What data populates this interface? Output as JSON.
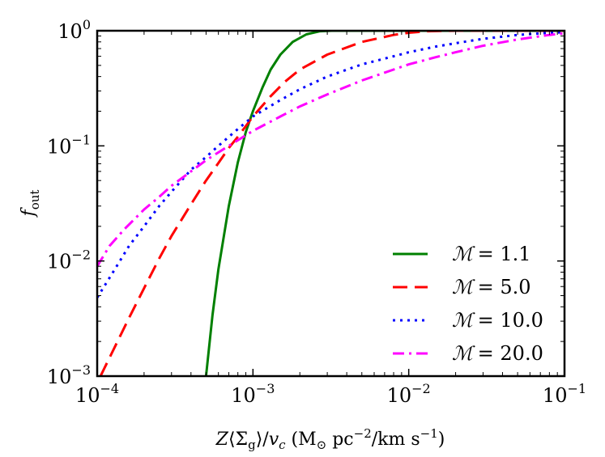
{
  "chart_data": {
    "type": "line",
    "title": "",
    "xlabel": "Z⟨Σg⟩/vc (M⊙ pc^-2/km s^-1)",
    "ylabel": "f_out",
    "xscale": "log",
    "yscale": "log",
    "xlim": [
      0.0001,
      0.1
    ],
    "ylim": [
      0.001,
      1
    ],
    "x_ticks": [
      {
        "value": 0.0001,
        "base": "10",
        "exp": "−4"
      },
      {
        "value": 0.001,
        "base": "10",
        "exp": "−3"
      },
      {
        "value": 0.01,
        "base": "10",
        "exp": "−2"
      },
      {
        "value": 0.1,
        "base": "10",
        "exp": "−1"
      }
    ],
    "y_ticks": [
      {
        "value": 0.001,
        "base": "10",
        "exp": "−3"
      },
      {
        "value": 0.01,
        "base": "10",
        "exp": "−2"
      },
      {
        "value": 0.1,
        "base": "10",
        "exp": "−1"
      },
      {
        "value": 1,
        "base": "10",
        "exp": "0"
      }
    ],
    "legend_position": "lower-right",
    "series": [
      {
        "name": "ℳ = 1.1",
        "label_sym": "ℳ",
        "label_val": "= 1.1",
        "color": "#008000",
        "dash": "solid",
        "x": [
          0.0005,
          0.00055,
          0.0006,
          0.0007,
          0.0008,
          0.0009,
          0.001,
          0.00115,
          0.0013,
          0.0015,
          0.0018,
          0.0022,
          0.0027,
          0.0032,
          0.01,
          0.1
        ],
        "y": [
          0.001,
          0.0034,
          0.0085,
          0.03,
          0.072,
          0.132,
          0.2,
          0.32,
          0.46,
          0.62,
          0.8,
          0.93,
          0.99,
          1.0,
          1.0,
          1.0
        ]
      },
      {
        "name": "ℳ = 5.0",
        "label_sym": "ℳ",
        "label_val": "= 5.0",
        "color": "#ff0000",
        "dash": "dashed",
        "x": [
          0.000105,
          0.00013,
          0.00016,
          0.0002,
          0.00025,
          0.0003,
          0.0004,
          0.0005,
          0.0006,
          0.0007,
          0.0008,
          0.001,
          0.0013,
          0.0016,
          0.002,
          0.003,
          0.005,
          0.008,
          0.01,
          0.013,
          0.02,
          0.05,
          0.1
        ],
        "y": [
          0.001,
          0.0018,
          0.0032,
          0.0058,
          0.0105,
          0.0165,
          0.031,
          0.05,
          0.071,
          0.096,
          0.12,
          0.18,
          0.27,
          0.36,
          0.46,
          0.62,
          0.8,
          0.92,
          0.96,
          0.99,
          1.0,
          1.0,
          1.0
        ]
      },
      {
        "name": "ℳ = 10.0",
        "label_sym": "ℳ",
        "label_val": "= 10.0",
        "color": "#0000ff",
        "dash": "dotted",
        "x": [
          0.0001,
          0.00013,
          0.00016,
          0.0002,
          0.00025,
          0.0003,
          0.0004,
          0.0005,
          0.0006,
          0.0008,
          0.001,
          0.0015,
          0.002,
          0.003,
          0.005,
          0.008,
          0.01,
          0.015,
          0.02,
          0.03,
          0.05,
          0.08,
          0.1
        ],
        "y": [
          0.0048,
          0.0085,
          0.0135,
          0.02,
          0.03,
          0.04,
          0.062,
          0.08,
          0.1,
          0.14,
          0.18,
          0.25,
          0.31,
          0.4,
          0.51,
          0.6,
          0.65,
          0.73,
          0.78,
          0.85,
          0.92,
          0.96,
          0.97
        ]
      },
      {
        "name": "ℳ = 20.0",
        "label_sym": "ℳ",
        "label_val": "= 20.0",
        "color": "#ff00ff",
        "dash": "dashdot",
        "x": [
          0.0001,
          0.00012,
          0.00015,
          0.0002,
          0.00025,
          0.0003,
          0.0004,
          0.0005,
          0.0007,
          0.001,
          0.0015,
          0.002,
          0.003,
          0.005,
          0.008,
          0.01,
          0.015,
          0.02,
          0.03,
          0.05,
          0.08,
          0.1
        ],
        "y": [
          0.009,
          0.0135,
          0.019,
          0.028,
          0.036,
          0.045,
          0.06,
          0.075,
          0.1,
          0.135,
          0.18,
          0.22,
          0.28,
          0.37,
          0.46,
          0.51,
          0.59,
          0.65,
          0.74,
          0.84,
          0.92,
          0.95
        ]
      }
    ]
  }
}
